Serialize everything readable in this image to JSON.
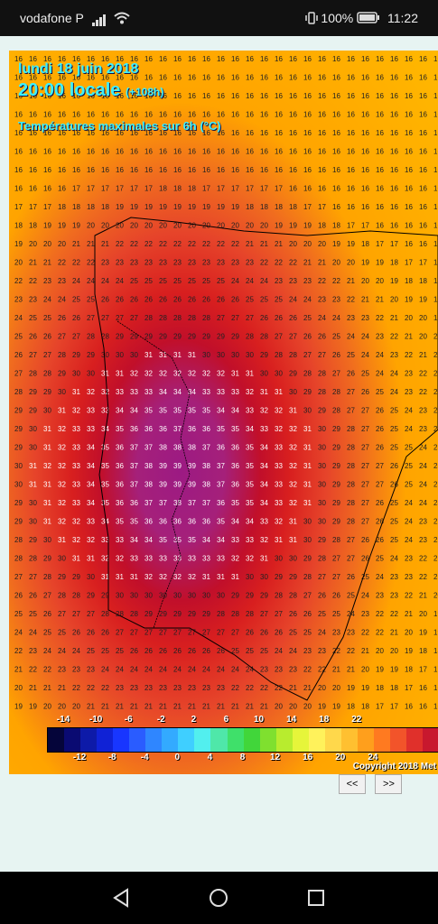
{
  "status_bar": {
    "carrier": "vodafone P",
    "battery": "100%",
    "time": "11:22"
  },
  "map": {
    "date_line": "lundi 18 juin 2018",
    "time_line": "20:00 locale",
    "offset": "(+108h)",
    "subtitle": "Températures maximales sur 6h (°C)",
    "copyright": "Copyright 2018 Met",
    "legend_top_ticks": [
      "-14",
      "-10",
      "-6",
      "-2",
      "2",
      "6",
      "10",
      "14",
      "18",
      "22"
    ],
    "legend_bottom_ticks": [
      "-12",
      "-8",
      "-4",
      "0",
      "4",
      "8",
      "12",
      "16",
      "20",
      "24"
    ],
    "legend_colors": [
      "#05053a",
      "#0a0a72",
      "#0d1aa8",
      "#1022d6",
      "#1836ff",
      "#2a5cff",
      "#2f86ff",
      "#33aaff",
      "#3fcfff",
      "#52efee",
      "#4fe7a9",
      "#3fe06a",
      "#41d63a",
      "#7fe02f",
      "#b8ec2e",
      "#e6f53a",
      "#fff25b",
      "#ffd84b",
      "#ffc030",
      "#ff9f1c",
      "#ff7a20",
      "#f2542a",
      "#e0302b",
      "#c8182e"
    ]
  },
  "navigation": {
    "prev_label": "<<",
    "next_label": ">>"
  }
}
